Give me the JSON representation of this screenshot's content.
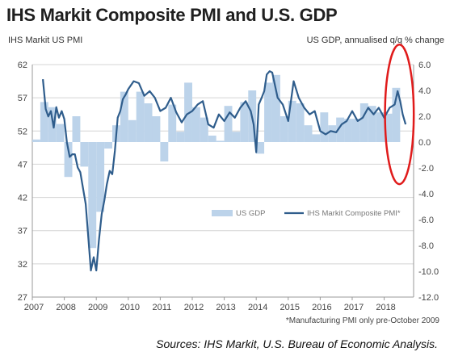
{
  "header": {
    "title": "IHS Markit Composite PMI and U.S. GDP",
    "left_axis_title": "IHS Markit US PMI",
    "right_axis_title": "US GDP, annualised q/q % change"
  },
  "footnote": "*Manufacturing PMI only pre-October 2009",
  "sources": "Sources:  IHS Markit, U.S. Bureau of Economic Analysis.",
  "colors": {
    "gdp_bar": "#bcd3ea",
    "pmi_line": "#2f5d8c",
    "highlight_ellipse": "#e01b1b",
    "grid": "#d4d4d4"
  },
  "chart_data": {
    "type": "bar+line",
    "left_axis": {
      "ylim": [
        27,
        62
      ],
      "ticks": [
        27,
        32,
        37,
        42,
        47,
        52,
        57,
        62
      ]
    },
    "right_axis": {
      "ylim": [
        -12.0,
        6.0
      ],
      "ticks": [
        "6.0",
        "4.0",
        "2.0",
        "0.0",
        "-2.0",
        "-4.0",
        "-6.0",
        "-8.0",
        "-10.0",
        "-12.0"
      ]
    },
    "x_ticks": [
      "2007",
      "2008",
      "2009",
      "2010",
      "2011",
      "2012",
      "2013",
      "2014",
      "2015",
      "2016",
      "2017",
      "2018"
    ],
    "xlim": [
      2007.0,
      2018.92
    ],
    "legend": [
      {
        "name": "US GDP",
        "kind": "bar"
      },
      {
        "name": "IHS Markit Composite PMI*",
        "kind": "line"
      }
    ],
    "gdp_series": {
      "name": "US GDP",
      "quarters": [
        2007.0,
        2007.25,
        2007.5,
        2007.75,
        2008.0,
        2008.25,
        2008.5,
        2008.75,
        2009.0,
        2009.25,
        2009.5,
        2009.75,
        2010.0,
        2010.25,
        2010.5,
        2010.75,
        2011.0,
        2011.25,
        2011.5,
        2011.75,
        2012.0,
        2012.25,
        2012.5,
        2012.75,
        2013.0,
        2013.25,
        2013.5,
        2013.75,
        2014.0,
        2014.25,
        2014.5,
        2014.75,
        2015.0,
        2015.25,
        2015.5,
        2015.75,
        2016.0,
        2016.25,
        2016.5,
        2016.75,
        2017.0,
        2017.25,
        2017.5,
        2017.75,
        2018.0,
        2018.25
      ],
      "values": [
        0.2,
        3.1,
        2.7,
        1.4,
        -2.7,
        2.0,
        -1.9,
        -8.2,
        -5.4,
        -0.5,
        1.3,
        3.9,
        1.7,
        3.9,
        3.0,
        2.0,
        -1.5,
        2.9,
        0.8,
        4.6,
        2.7,
        1.9,
        0.5,
        0.1,
        2.8,
        0.8,
        3.1,
        4.0,
        -0.9,
        4.6,
        5.2,
        2.0,
        3.2,
        3.0,
        1.3,
        0.6,
        2.3,
        1.3,
        1.9,
        1.8,
        1.8,
        3.0,
        2.8,
        2.3,
        2.2,
        4.2
      ]
    },
    "pmi_series": {
      "name": "IHS Markit Composite PMI*",
      "x": [
        2007.33,
        2007.42,
        2007.5,
        2007.58,
        2007.67,
        2007.75,
        2007.83,
        2007.92,
        2008.0,
        2008.08,
        2008.17,
        2008.25,
        2008.33,
        2008.42,
        2008.5,
        2008.58,
        2008.67,
        2008.75,
        2008.83,
        2008.92,
        2009.0,
        2009.08,
        2009.17,
        2009.25,
        2009.33,
        2009.42,
        2009.5,
        2009.58,
        2009.67,
        2009.75,
        2009.83,
        2009.92,
        2010.0,
        2010.17,
        2010.33,
        2010.5,
        2010.67,
        2010.83,
        2011.0,
        2011.17,
        2011.33,
        2011.5,
        2011.67,
        2011.83,
        2012.0,
        2012.17,
        2012.33,
        2012.5,
        2012.67,
        2012.83,
        2013.0,
        2013.17,
        2013.33,
        2013.5,
        2013.67,
        2013.83,
        2013.92,
        2014.0,
        2014.08,
        2014.17,
        2014.25,
        2014.33,
        2014.42,
        2014.5,
        2014.67,
        2014.83,
        2015.0,
        2015.17,
        2015.33,
        2015.5,
        2015.67,
        2015.83,
        2016.0,
        2016.17,
        2016.33,
        2016.5,
        2016.67,
        2016.83,
        2017.0,
        2017.17,
        2017.33,
        2017.5,
        2017.67,
        2017.83,
        2018.0,
        2018.17,
        2018.33,
        2018.42,
        2018.5,
        2018.58,
        2018.67
      ],
      "values": [
        59.8,
        55.3,
        54.2,
        55.0,
        52.5,
        55.6,
        54.0,
        55.0,
        53.8,
        50.3,
        48.1,
        48.5,
        48.5,
        46.5,
        45.8,
        43.5,
        41.0,
        36.0,
        31.0,
        33.0,
        31.0,
        35.5,
        39.5,
        41.5,
        44.0,
        46.0,
        45.5,
        49.0,
        54.0,
        55.0,
        56.8,
        57.5,
        58.3,
        59.5,
        59.2,
        57.3,
        58.0,
        57.0,
        55.0,
        55.5,
        57.0,
        54.8,
        53.3,
        54.5,
        55.0,
        56.0,
        56.5,
        53.0,
        52.5,
        54.5,
        53.5,
        54.8,
        54.0,
        55.5,
        56.5,
        55.0,
        53.0,
        48.8,
        56.0,
        57.0,
        58.0,
        60.5,
        61.0,
        60.8,
        57.0,
        56.0,
        53.5,
        59.5,
        57.0,
        55.5,
        54.5,
        55.0,
        52.0,
        51.5,
        52.0,
        51.8,
        53.0,
        53.5,
        55.0,
        53.5,
        54.0,
        55.5,
        54.5,
        55.5,
        54.0,
        55.5,
        56.0,
        58.0,
        56.5,
        54.5,
        53.0
      ]
    },
    "highlight": {
      "x_range": [
        2018.1,
        2018.85
      ],
      "description": "circled recent period"
    }
  }
}
